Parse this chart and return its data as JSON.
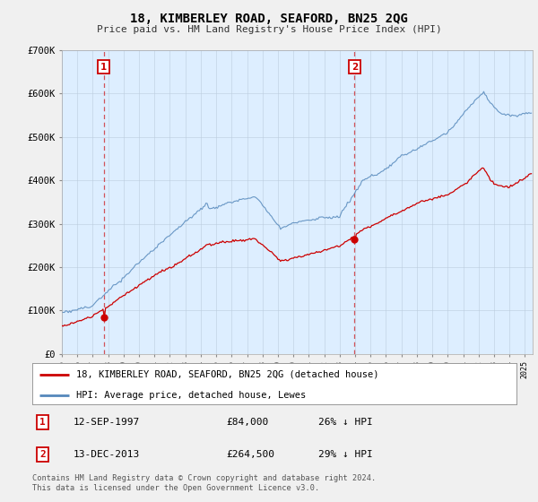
{
  "title": "18, KIMBERLEY ROAD, SEAFORD, BN25 2QG",
  "subtitle": "Price paid vs. HM Land Registry's House Price Index (HPI)",
  "ylabel_ticks": [
    "£0",
    "£100K",
    "£200K",
    "£300K",
    "£400K",
    "£500K",
    "£600K",
    "£700K"
  ],
  "ytick_values": [
    0,
    100000,
    200000,
    300000,
    400000,
    500000,
    600000,
    700000
  ],
  "ylim": [
    0,
    700000
  ],
  "xlim_start": 1995.0,
  "xlim_end": 2025.5,
  "marker1_date": 1997.71,
  "marker1_value": 84000,
  "marker1_label": "1",
  "marker2_date": 2013.96,
  "marker2_value": 264500,
  "marker2_label": "2",
  "legend_line1": "18, KIMBERLEY ROAD, SEAFORD, BN25 2QG (detached house)",
  "legend_line2": "HPI: Average price, detached house, Lewes",
  "table_row1": [
    "1",
    "12-SEP-1997",
    "£84,000",
    "26% ↓ HPI"
  ],
  "table_row2": [
    "2",
    "13-DEC-2013",
    "£264,500",
    "29% ↓ HPI"
  ],
  "footnote": "Contains HM Land Registry data © Crown copyright and database right 2024.\nThis data is licensed under the Open Government Licence v3.0.",
  "red_color": "#cc0000",
  "blue_color": "#5588bb",
  "plot_bg_color": "#ddeeff",
  "bg_color": "#f0f0f0",
  "grid_color": "#bbccdd"
}
